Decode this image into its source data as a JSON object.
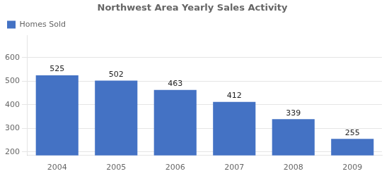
{
  "chart_data": {
    "type": "bar",
    "title": "Northwest Area Yearly Sales Activity",
    "categories": [
      "2004",
      "2005",
      "2006",
      "2007",
      "2008",
      "2009"
    ],
    "series": [
      {
        "name": "Homes Sold",
        "color": "#4472C4",
        "values": [
          525,
          502,
          463,
          412,
          339,
          255
        ]
      }
    ],
    "ylim": [
      185,
      693
    ],
    "yticks": [
      200,
      300,
      400,
      500,
      600
    ],
    "grid": true,
    "legend": "upper left",
    "data_labels": true
  }
}
